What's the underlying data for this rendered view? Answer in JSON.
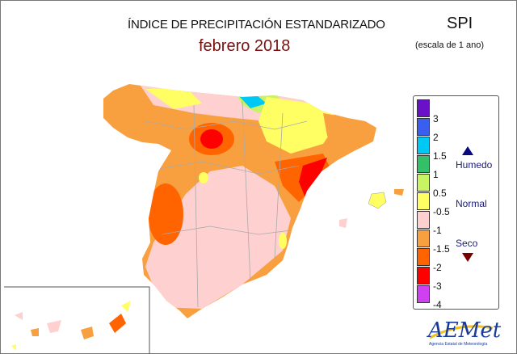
{
  "header": {
    "title": "ÍNDICE DE PRECIPITACIÓN ESTANDARIZADO",
    "period": "febrero 2018",
    "index": "SPI",
    "scale": "(escala de 1 ano)"
  },
  "legend": {
    "colors": [
      "#6a10c8",
      "#3a5ef0",
      "#00c8f4",
      "#34c068",
      "#c8f464",
      "#ffff64",
      "#ffd0d0",
      "#f8a040",
      "#ff6400",
      "#ff0000",
      "#d040f0"
    ],
    "labels": [
      "3",
      "2",
      "1.5",
      "1",
      "0.5",
      "-0.5",
      "-1",
      "-1.5",
      "-2",
      "-3",
      "-4"
    ],
    "categories": {
      "wet": "Humedo",
      "normal": "Normal",
      "dry": "Seco"
    }
  },
  "logo": {
    "name": "AEMet",
    "subtitle": "Agencia Estatal de Meteorología"
  }
}
